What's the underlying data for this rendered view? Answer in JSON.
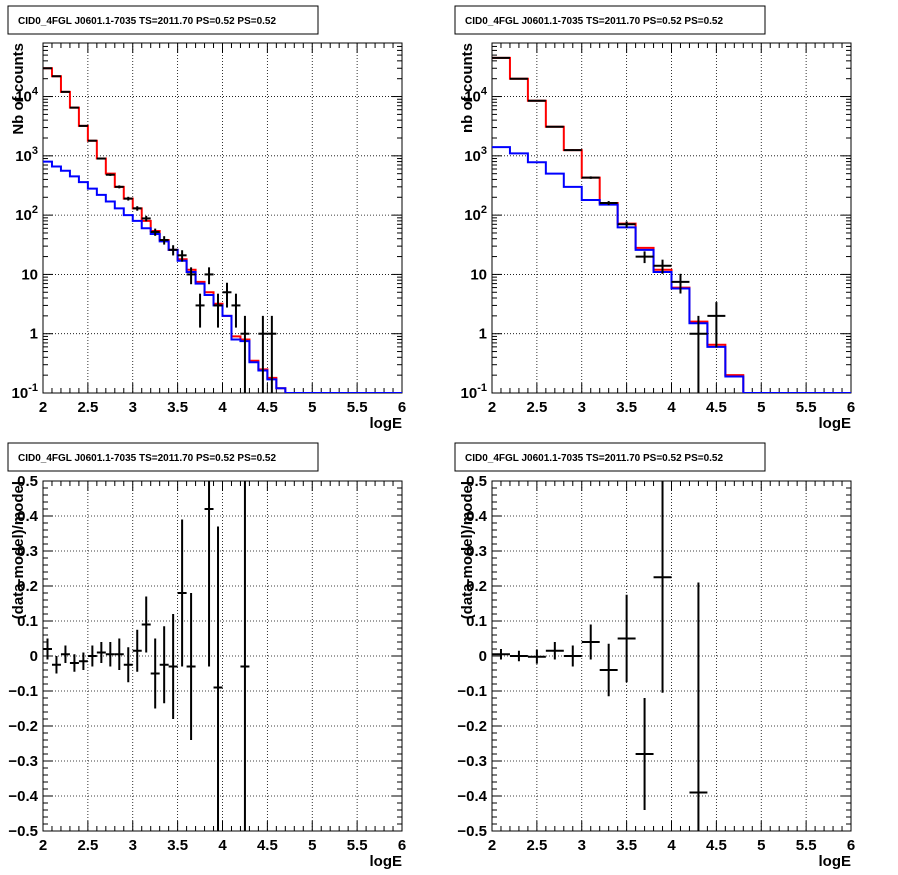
{
  "chart_data": [
    {
      "type": "line",
      "title": "CID0_4FGL J0601.1-7035 TS=2011.70 PS=0.52 PS=0.52",
      "xlabel": "logE",
      "ylabel": "Nb of counts",
      "xlim": [
        2,
        6
      ],
      "ylim": [
        0.1,
        80000
      ],
      "yscale": "log",
      "grid": true,
      "xticks": [
        "2",
        "2.5",
        "3",
        "3.5",
        "4",
        "4.5",
        "5",
        "5.5",
        "6"
      ],
      "yticks": [
        "10^-1",
        "1",
        "10",
        "10^2",
        "10^3",
        "10^4"
      ],
      "bin_edges": [
        2.0,
        2.1,
        2.2,
        2.3,
        2.4,
        2.5,
        2.6,
        2.7,
        2.8,
        2.9,
        3.0,
        3.1,
        3.2,
        3.3,
        3.4,
        3.5,
        3.6,
        3.7,
        3.8,
        3.9,
        4.0,
        4.1,
        4.2,
        4.3,
        4.4,
        4.5,
        4.6,
        4.7,
        4.8,
        4.9,
        5.0,
        5.1,
        5.2,
        5.3,
        5.4,
        5.5,
        5.6,
        5.7,
        5.8,
        5.9,
        6.0
      ],
      "series": [
        {
          "color": "#ff0000",
          "kind": "step",
          "values": [
            30000,
            22000,
            12000,
            6500,
            3200,
            1800,
            900,
            500,
            300,
            190,
            130,
            80,
            54,
            38,
            26,
            18,
            12,
            7.5,
            5,
            3.2,
            2,
            0.9,
            0.8,
            0.35,
            0.25,
            0.18,
            0.12,
            0.1,
            0.1,
            0.1,
            0.1,
            0.1,
            0.1,
            0.1,
            0.1,
            0.1,
            0.1,
            0.1,
            0.1,
            0.1
          ]
        },
        {
          "color": "#0000ff",
          "kind": "step",
          "values": [
            800,
            660,
            560,
            450,
            360,
            280,
            220,
            170,
            130,
            100,
            80,
            60,
            48,
            36,
            26,
            17,
            11,
            7,
            4.5,
            3,
            2,
            0.8,
            0.75,
            0.33,
            0.24,
            0.17,
            0.12,
            0.1,
            0.1,
            0.1,
            0.1,
            0.1,
            0.1,
            0.1,
            0.1,
            0.1,
            0.1,
            0.1,
            0.1,
            0.1
          ]
        },
        {
          "color": "#000000",
          "kind": "points",
          "x": [
            2.05,
            2.15,
            2.25,
            2.35,
            2.45,
            2.55,
            2.65,
            2.75,
            2.85,
            2.95,
            3.05,
            3.15,
            3.25,
            3.35,
            3.45,
            3.55,
            3.65,
            3.75,
            3.85,
            3.95,
            4.05,
            4.15,
            4.25,
            4.45,
            4.55
          ],
          "y": [
            30000,
            22000,
            12000,
            6500,
            3200,
            1800,
            900,
            480,
            300,
            190,
            130,
            88,
            52,
            38,
            26,
            21,
            10,
            3,
            10,
            3,
            5,
            3,
            1,
            1,
            1
          ]
        }
      ]
    },
    {
      "type": "line",
      "title": "CID0_4FGL J0601.1-7035 TS=2011.70 PS=0.52 PS=0.52",
      "xlabel": "logE",
      "ylabel": "nb of counts",
      "xlim": [
        2,
        6
      ],
      "ylim": [
        0.1,
        80000
      ],
      "yscale": "log",
      "grid": true,
      "xticks": [
        "2",
        "2.5",
        "3",
        "3.5",
        "4",
        "4.5",
        "5",
        "5.5",
        "6"
      ],
      "yticks": [
        "10^-1",
        "1",
        "10",
        "10^2",
        "10^3",
        "10^4"
      ],
      "bin_edges": [
        2.0,
        2.2,
        2.4,
        2.6,
        2.8,
        3.0,
        3.2,
        3.4,
        3.6,
        3.8,
        4.0,
        4.2,
        4.4,
        4.6,
        4.8,
        5.0,
        5.2,
        5.4,
        5.6,
        5.8,
        6.0
      ],
      "series": [
        {
          "color": "#ff0000",
          "kind": "step",
          "values": [
            45000,
            20000,
            8500,
            3100,
            1250,
            430,
            160,
            72,
            28,
            12,
            6,
            1.6,
            0.65,
            0.2,
            0.1,
            0.1,
            0.1,
            0.1,
            0.1,
            0.1
          ]
        },
        {
          "color": "#0000ff",
          "kind": "step",
          "values": [
            1400,
            1100,
            780,
            500,
            300,
            180,
            150,
            62,
            26,
            11,
            5.8,
            1.5,
            0.6,
            0.19,
            0.1,
            0.1,
            0.1,
            0.1,
            0.1,
            0.1
          ]
        },
        {
          "color": "#000000",
          "kind": "points",
          "x": [
            2.1,
            2.3,
            2.5,
            2.7,
            2.9,
            3.1,
            3.3,
            3.5,
            3.7,
            3.9,
            4.1,
            4.3,
            4.5
          ],
          "y": [
            45000,
            20000,
            8500,
            3100,
            1250,
            430,
            160,
            70,
            20,
            14,
            7.5,
            1,
            2
          ]
        }
      ]
    },
    {
      "type": "scatter",
      "title": "CID0_4FGL J0601.1-7035 TS=2011.70 PS=0.52 PS=0.52",
      "xlabel": "logE",
      "ylabel": "(data-model)/model",
      "xlim": [
        2,
        6
      ],
      "ylim": [
        -0.5,
        0.5
      ],
      "grid": true,
      "xticks": [
        "2",
        "2.5",
        "3",
        "3.5",
        "4",
        "4.5",
        "5",
        "5.5",
        "6"
      ],
      "yticks": [
        "−0.5",
        "−0.4",
        "−0.3",
        "−0.2",
        "−0.1",
        "0",
        "0.1",
        "0.2",
        "0.3",
        "0.4",
        "0.5"
      ],
      "series": [
        {
          "color": "#000000",
          "x": [
            2.05,
            2.15,
            2.25,
            2.35,
            2.45,
            2.55,
            2.65,
            2.75,
            2.85,
            2.95,
            3.05,
            3.15,
            3.25,
            3.35,
            3.45,
            3.55,
            3.65,
            3.85,
            3.95,
            4.25
          ],
          "y": [
            0.02,
            -0.025,
            0.005,
            -0.02,
            -0.015,
            0.0,
            0.01,
            0.005,
            0.005,
            -0.025,
            0.015,
            0.09,
            -0.05,
            -0.025,
            -0.03,
            0.18,
            -0.03,
            0.42,
            -0.09,
            -0.03
          ],
          "err": [
            0.03,
            0.025,
            0.025,
            0.025,
            0.025,
            0.03,
            0.03,
            0.035,
            0.045,
            0.05,
            0.06,
            0.08,
            0.1,
            0.11,
            0.15,
            0.21,
            0.21,
            0.45,
            0.46,
            0.6
          ]
        }
      ]
    },
    {
      "type": "scatter",
      "title": "CID0_4FGL J0601.1-7035 TS=2011.70 PS=0.52 PS=0.52",
      "xlabel": "logE",
      "ylabel": "(data-model)/model",
      "xlim": [
        2,
        6
      ],
      "ylim": [
        -0.5,
        0.5
      ],
      "grid": true,
      "xticks": [
        "2",
        "2.5",
        "3",
        "3.5",
        "4",
        "4.5",
        "5",
        "5.5",
        "6"
      ],
      "yticks": [
        "−0.5",
        "−0.4",
        "−0.3",
        "−0.2",
        "−0.1",
        "0",
        "0.1",
        "0.2",
        "0.3",
        "0.4",
        "0.5"
      ],
      "series": [
        {
          "color": "#000000",
          "x": [
            2.1,
            2.3,
            2.5,
            2.7,
            2.9,
            3.1,
            3.3,
            3.5,
            3.7,
            3.9,
            4.3
          ],
          "y": [
            0.005,
            0.0,
            -0.002,
            0.015,
            0.0,
            0.04,
            -0.04,
            0.05,
            -0.28,
            0.225,
            -0.39
          ],
          "err": [
            0.015,
            0.015,
            0.02,
            0.025,
            0.03,
            0.05,
            0.075,
            0.125,
            0.16,
            0.33,
            0.6
          ]
        }
      ]
    }
  ]
}
